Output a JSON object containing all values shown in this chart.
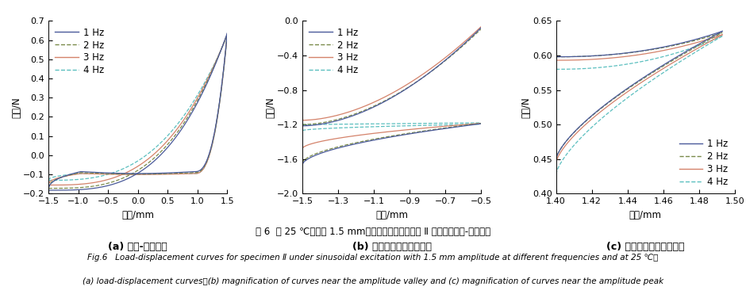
{
  "colors": [
    "#4a5a9a",
    "#7a8a4a",
    "#d4826a",
    "#5bbfbf"
  ],
  "linestyles": [
    "-",
    "--",
    "-",
    "--"
  ],
  "linewidths": [
    0.9,
    0.9,
    0.9,
    0.9
  ],
  "labels": [
    "1 Hz",
    "2 Hz",
    "3 Hz",
    "4 Hz"
  ],
  "ax_a": {
    "xlabel": "位移/mm",
    "ylabel": "载荷/N",
    "xlim": [
      -1.5,
      1.5
    ],
    "ylim": [
      -0.2,
      0.7
    ],
    "xticks": [
      -1.5,
      -1.0,
      -0.5,
      0.0,
      0.5,
      1.0,
      1.5
    ],
    "yticks": [
      -0.2,
      -0.1,
      0.0,
      0.1,
      0.2,
      0.3,
      0.4,
      0.5,
      0.6,
      0.7
    ],
    "subtitle": "(a) 载荷-位移曲线",
    "legend_loc": "upper left"
  },
  "ax_b": {
    "xlabel": "位移/mm",
    "ylabel": "载荷/N",
    "xlim": [
      -1.5,
      -0.5
    ],
    "ylim": [
      -2.0,
      0.0
    ],
    "xticks": [
      -1.5,
      -1.3,
      -1.1,
      -0.9,
      -0.7,
      -0.5
    ],
    "yticks": [
      -2.0,
      -1.6,
      -1.2,
      -0.8,
      -0.4,
      0.0
    ],
    "subtitle": "(b) 振幅谷値附近曲线放大",
    "legend_loc": "upper left"
  },
  "ax_c": {
    "xlabel": "位移/mm",
    "ylabel": "载荷/N",
    "xlim": [
      1.4,
      1.5
    ],
    "ylim": [
      0.4,
      0.65
    ],
    "xticks": [
      1.4,
      1.42,
      1.44,
      1.46,
      1.48,
      1.5
    ],
    "yticks": [
      0.4,
      0.45,
      0.5,
      0.55,
      0.6,
      0.65
    ],
    "subtitle": "(c) 振幅峰値附近曲线放大",
    "legend_loc": "lower right"
  },
  "label_fontsize": 8.5,
  "tick_fontsize": 8,
  "legend_fontsize": 8.5,
  "subtitle_fontsize": 9,
  "caption_cn": "图 6  在 25 ℃，振幅 1.5 mm、不同频率激励作用下 Ⅱ 类试样的载荷-位移曲线",
  "caption_en1": "Fig.6   Load-displacement curves for specimen Ⅱ under sinusoidal excitation with 1.5 mm amplitude at different frequencies and at 25 ℃：",
  "caption_en2": "(a) load-displacement curves；(b) magnification of curves near the amplitude valley and (c) magnification of curves near the amplitude peak"
}
